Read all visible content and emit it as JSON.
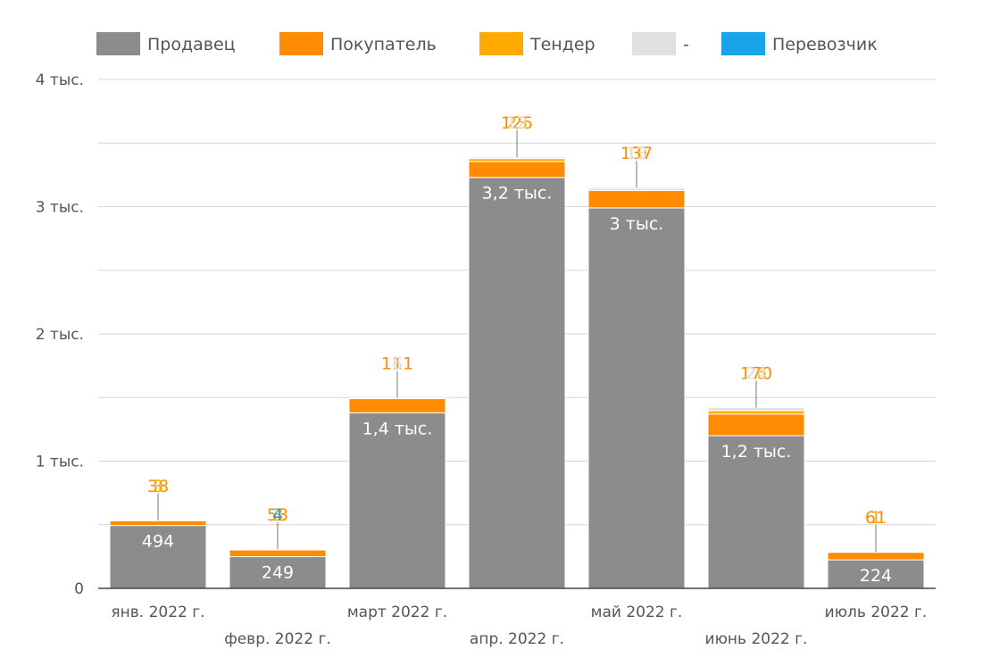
{
  "chart_data": {
    "type": "bar",
    "stacked": true,
    "categories": [
      "янв. 2022 г.",
      "февр. 2022 г.",
      "март 2022 г.",
      "апр. 2022 г.",
      "май 2022 г.",
      "июнь 2022 г.",
      "июль 2022 г."
    ],
    "ylim": [
      0,
      4000
    ],
    "y_ticks": [
      {
        "value": 0,
        "label": "0"
      },
      {
        "value": 1000,
        "label": "1 тыс."
      },
      {
        "value": 2000,
        "label": "2 тыс."
      },
      {
        "value": 3000,
        "label": "3 тыс."
      },
      {
        "value": 4000,
        "label": "4 тыс."
      }
    ],
    "grid": true,
    "legend_position": "top",
    "series": [
      {
        "name": "Продавец",
        "color": "#8c8c8c",
        "values": [
          494,
          249,
          1380,
          3230,
          2990,
          1200,
          224
        ],
        "labels": [
          "494",
          "249",
          "1,4 тыс.",
          "3,2 тыс.",
          "3 тыс.",
          "1,2 тыс.",
          "224"
        ]
      },
      {
        "name": "Покупатель",
        "color": "#ff8c00",
        "values": [
          38,
          53,
          111,
          125,
          137,
          170,
          61
        ],
        "labels": [
          "38",
          "53",
          "111",
          "125",
          "137",
          "170",
          "61"
        ]
      },
      {
        "name": "Тендер",
        "color": "#ffaa00",
        "values": [
          3,
          3,
          0,
          23,
          10,
          26,
          1
        ],
        "labels": [
          "3",
          "3",
          "",
          "23",
          "10",
          "26",
          "1"
        ]
      },
      {
        "name": "-",
        "color": "#e0e0e0",
        "values": [
          0,
          0,
          6,
          12,
          13,
          24,
          0
        ],
        "labels": [
          "",
          "",
          "6",
          "12",
          "13",
          "24",
          ""
        ]
      },
      {
        "name": "Перевозчик",
        "color": "#1aa3e8",
        "values": [
          0,
          4,
          0,
          0,
          0,
          0,
          0
        ],
        "labels": [
          "",
          "4",
          "",
          "",
          "",
          "",
          ""
        ]
      }
    ]
  }
}
